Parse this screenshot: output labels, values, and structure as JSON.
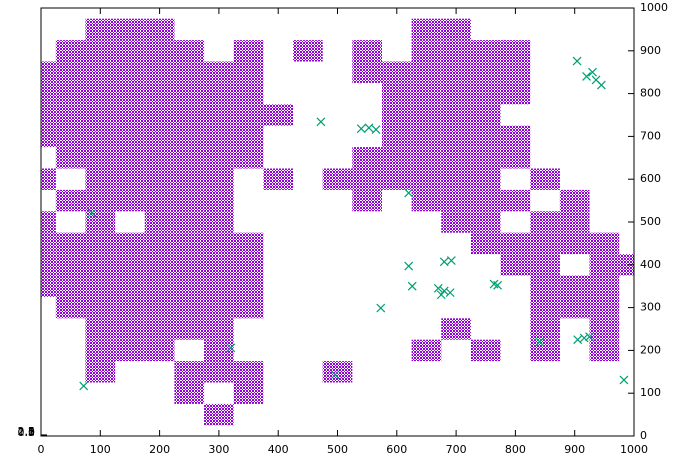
{
  "chart_data": {
    "type": "scatter",
    "xlim": [
      0,
      1000
    ],
    "xticks": [
      0,
      100,
      200,
      300,
      400,
      500,
      600,
      700,
      800,
      900,
      1000
    ],
    "ylim": [
      0,
      1000
    ],
    "yticks": [
      0,
      0.5,
      1,
      1.5,
      2,
      2.5
    ],
    "y2lim": [
      0,
      1000
    ],
    "y2ticks": [
      0,
      100,
      200,
      300,
      400,
      500,
      600,
      700,
      800,
      900,
      1000
    ],
    "series": [
      {
        "color": "#9400d3",
        "x": [
          100,
          150,
          200,
          650,
          700,
          50,
          100,
          150,
          200,
          250,
          350,
          450,
          550,
          650,
          700,
          750,
          800,
          0,
          50,
          100,
          150,
          200,
          250,
          300,
          350,
          550,
          600,
          650,
          700,
          750,
          800,
          0,
          50,
          100,
          150,
          200,
          250,
          300,
          350,
          600,
          650,
          700,
          750,
          800,
          0,
          50,
          100,
          150,
          200,
          250,
          300,
          350,
          400,
          600,
          650,
          700,
          750,
          0,
          50,
          100,
          150,
          200,
          250,
          300,
          350,
          600,
          650,
          700,
          750,
          800,
          50,
          100,
          150,
          200,
          250,
          300,
          350,
          550,
          600,
          650,
          700,
          750,
          800,
          0,
          100,
          150,
          200,
          250,
          300,
          400,
          500,
          550,
          600,
          650,
          700,
          750,
          850,
          50,
          100,
          150,
          200,
          250,
          300,
          550,
          650,
          700,
          750,
          800,
          900,
          0,
          100,
          200,
          250,
          300,
          700,
          750,
          850,
          900,
          0,
          50,
          100,
          150,
          200,
          250,
          300,
          350,
          750,
          800,
          850,
          900,
          950,
          0,
          50,
          100,
          150,
          200,
          250,
          300,
          350,
          800,
          850,
          950,
          1000,
          0,
          50,
          100,
          150,
          200,
          250,
          300,
          350,
          850,
          900,
          950,
          50,
          100,
          150,
          200,
          250,
          300,
          350,
          850,
          900,
          950,
          100,
          150,
          200,
          250,
          300,
          700,
          850,
          950,
          100,
          150,
          200,
          300,
          650,
          750,
          850,
          950,
          100,
          250,
          300,
          350,
          500,
          250,
          350,
          300
        ],
        "values": [
          950,
          950,
          950,
          950,
          950,
          900,
          900,
          900,
          900,
          900,
          900,
          900,
          900,
          900,
          900,
          900,
          900,
          850,
          850,
          850,
          850,
          850,
          850,
          850,
          850,
          850,
          850,
          850,
          850,
          850,
          850,
          800,
          800,
          800,
          800,
          800,
          800,
          800,
          800,
          800,
          800,
          800,
          800,
          800,
          750,
          750,
          750,
          750,
          750,
          750,
          750,
          750,
          750,
          750,
          750,
          750,
          750,
          700,
          700,
          700,
          700,
          700,
          700,
          700,
          700,
          700,
          700,
          700,
          700,
          700,
          650,
          650,
          650,
          650,
          650,
          650,
          650,
          650,
          650,
          650,
          650,
          650,
          650,
          600,
          600,
          600,
          600,
          600,
          600,
          600,
          600,
          600,
          600,
          600,
          600,
          600,
          600,
          550,
          550,
          550,
          550,
          550,
          550,
          550,
          550,
          550,
          550,
          550,
          550,
          500,
          500,
          500,
          500,
          500,
          500,
          500,
          500,
          500,
          450,
          450,
          450,
          450,
          450,
          450,
          450,
          450,
          450,
          450,
          450,
          450,
          450,
          400,
          400,
          400,
          400,
          400,
          400,
          400,
          400,
          400,
          400,
          400,
          400,
          350,
          350,
          350,
          350,
          350,
          350,
          350,
          350,
          350,
          350,
          350,
          300,
          300,
          300,
          300,
          300,
          300,
          300,
          300,
          300,
          300,
          250,
          250,
          250,
          250,
          250,
          250,
          250,
          250,
          200,
          200,
          200,
          200,
          200,
          200,
          200,
          200,
          150,
          150,
          150,
          150,
          150,
          100,
          100,
          50
        ]
      },
      {
        "color": "#009e73",
        "x": [
          72,
          86,
          320,
          472,
          496,
          573,
          620,
          620,
          626,
          680,
          692,
          680,
          670,
          690,
          675,
          764,
          770,
          553,
          540,
          565,
          916,
          905,
          925,
          936,
          920,
          945,
          930,
          904,
          841,
          983
        ],
        "values": [
          117,
          521,
          206,
          734,
          143,
          299,
          568,
          397,
          350,
          407,
          410,
          339,
          345,
          335,
          330,
          355,
          352,
          720,
          718,
          716,
          229,
          225,
          232,
          832,
          840,
          820,
          850,
          876,
          220,
          131
        ]
      }
    ]
  }
}
